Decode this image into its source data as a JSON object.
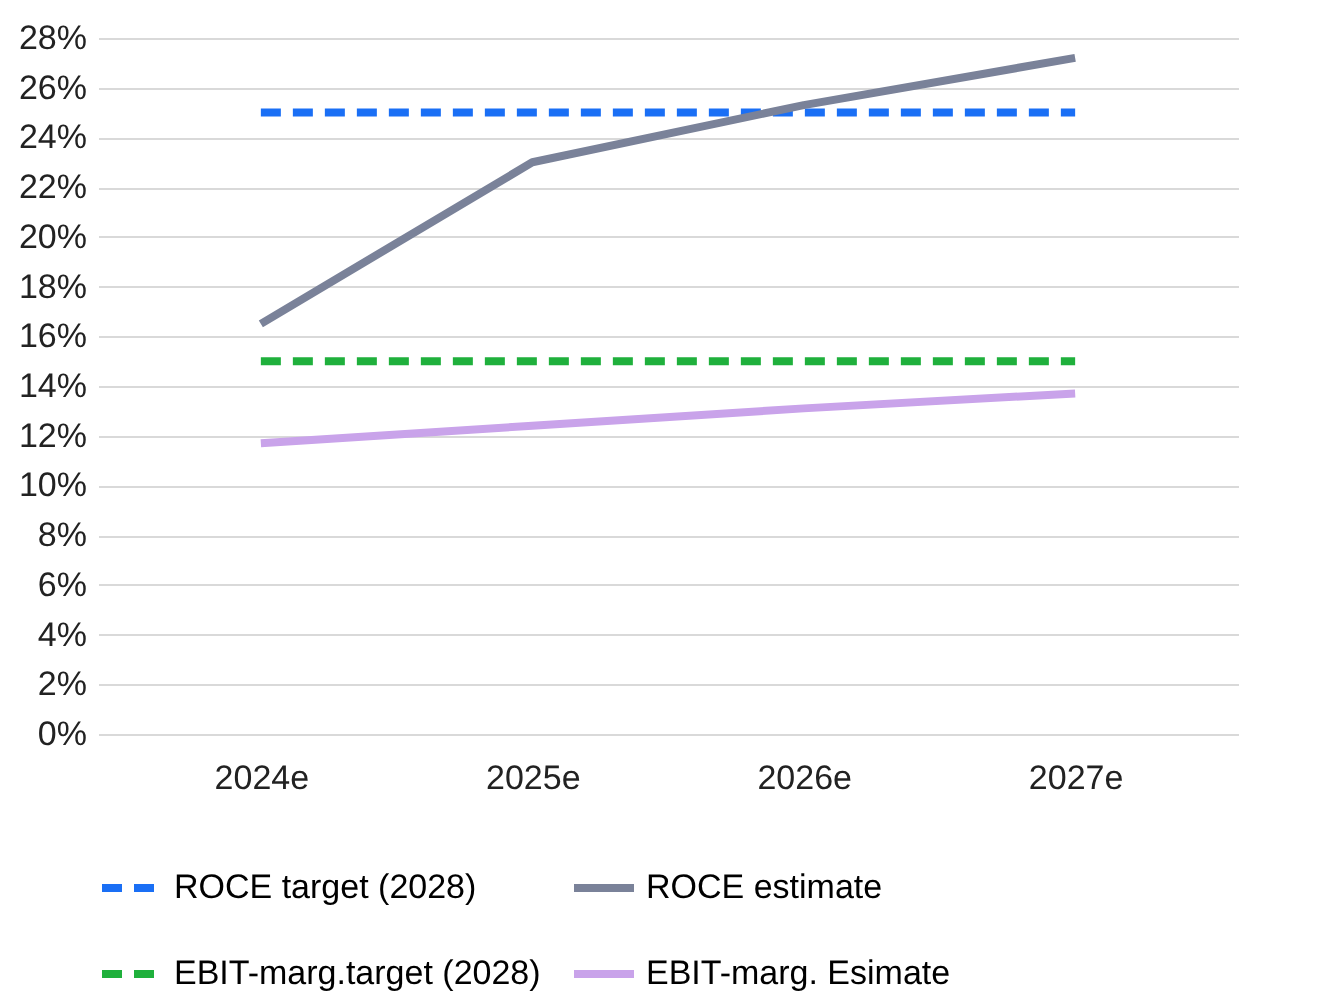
{
  "chart_data": {
    "type": "line",
    "categories": [
      "2024e",
      "2025e",
      "2026e",
      "2027e"
    ],
    "series": [
      {
        "name": "ROCE target (2028)",
        "color": "#1a6ff5",
        "line_style": "dashed",
        "values": [
          25,
          25,
          25,
          25
        ]
      },
      {
        "name": "ROCE estimate",
        "color": "#7a8299",
        "line_style": "solid",
        "values": [
          16.5,
          23,
          25.3,
          27.2
        ]
      },
      {
        "name": "EBIT-marg.target (2028)",
        "color": "#1fb03c",
        "line_style": "dashed",
        "values": [
          15,
          15,
          15,
          15
        ]
      },
      {
        "name": "EBIT-marg. Esimate",
        "color": "#c9a3ea",
        "line_style": "solid",
        "values": [
          11.7,
          12.4,
          13.1,
          13.7
        ]
      }
    ],
    "ylim": [
      0,
      28
    ],
    "yticks": [
      {
        "value": 0,
        "label": "0%"
      },
      {
        "value": 2,
        "label": "2%"
      },
      {
        "value": 4,
        "label": "4%"
      },
      {
        "value": 6,
        "label": "6%"
      },
      {
        "value": 8,
        "label": "8%"
      },
      {
        "value": 10,
        "label": "10%"
      },
      {
        "value": 12,
        "label": "12%"
      },
      {
        "value": 14,
        "label": "14%"
      },
      {
        "value": 16,
        "label": "16%"
      },
      {
        "value": 18,
        "label": "18%"
      },
      {
        "value": 20,
        "label": "20%"
      },
      {
        "value": 22,
        "label": "22%"
      },
      {
        "value": 24,
        "label": "24%"
      },
      {
        "value": 26,
        "label": "26%"
      },
      {
        "value": 28,
        "label": "28%"
      }
    ],
    "grid": "y",
    "legend": "bottom",
    "marker": "none"
  }
}
